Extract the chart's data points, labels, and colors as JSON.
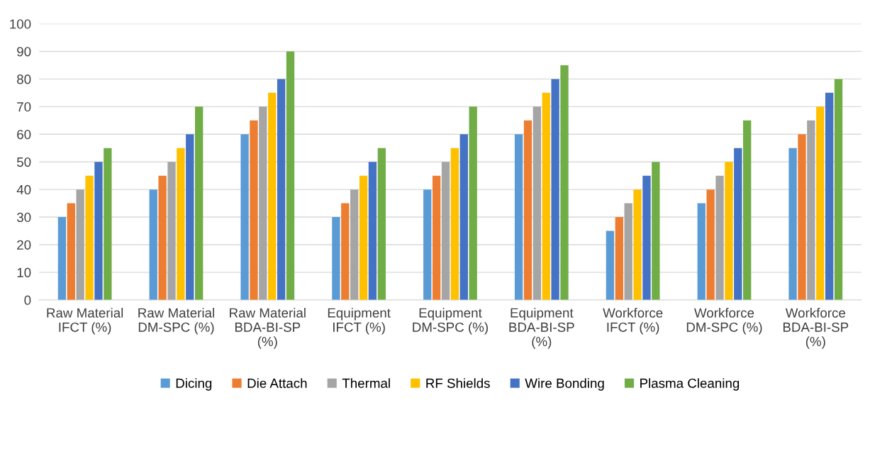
{
  "chart_data": {
    "type": "bar",
    "categories": [
      "Raw Material IFCT (%)",
      "Raw Material DM-SPC (%)",
      "Raw Material BDA-BI-SP (%)",
      "Equipment IFCT (%)",
      "Equipment DM-SPC (%)",
      "Equipment BDA-BI-SP (%)",
      "Workforce IFCT (%)",
      "Workforce DM-SPC (%)",
      "Workforce BDA-BI-SP (%)"
    ],
    "series": [
      {
        "name": "Dicing",
        "color": "#5b9bd5",
        "values": [
          30,
          40,
          60,
          30,
          40,
          60,
          25,
          35,
          55
        ]
      },
      {
        "name": "Die Attach",
        "color": "#ed7d31",
        "values": [
          35,
          45,
          65,
          35,
          45,
          65,
          30,
          40,
          60
        ]
      },
      {
        "name": "Thermal",
        "color": "#a5a5a5",
        "values": [
          40,
          50,
          70,
          40,
          50,
          70,
          35,
          45,
          65
        ]
      },
      {
        "name": "RF Shields",
        "color": "#ffc000",
        "values": [
          45,
          55,
          75,
          45,
          55,
          75,
          40,
          50,
          70
        ]
      },
      {
        "name": "Wire Bonding",
        "color": "#4472c4",
        "values": [
          50,
          60,
          80,
          50,
          60,
          80,
          45,
          55,
          75
        ]
      },
      {
        "name": "Plasma Cleaning",
        "color": "#70ad47",
        "values": [
          55,
          70,
          90,
          55,
          70,
          85,
          50,
          65,
          80
        ]
      }
    ],
    "ylim": [
      0,
      100
    ],
    "yticks": [
      0,
      10,
      20,
      30,
      40,
      50,
      60,
      70,
      80,
      90,
      100
    ],
    "grid": "y",
    "legend": "bottom"
  }
}
